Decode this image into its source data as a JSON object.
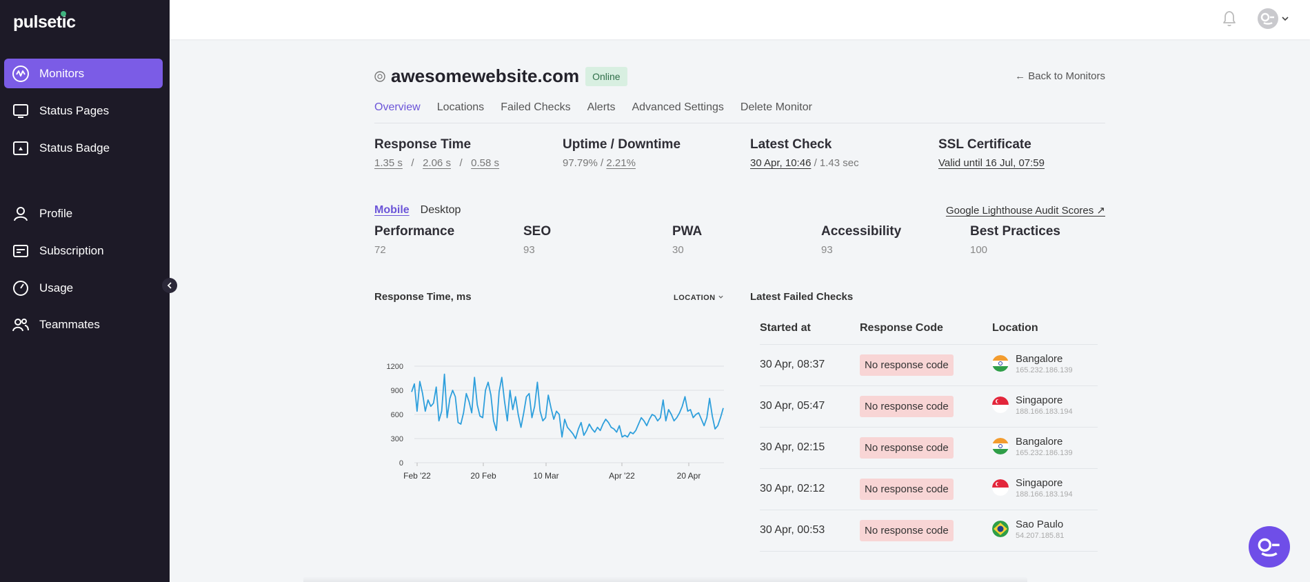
{
  "app": {
    "logo": "pulsetic"
  },
  "sidebar": {
    "items": [
      {
        "label": "Monitors",
        "icon": "monitors-icon",
        "active": true
      },
      {
        "label": "Status Pages",
        "icon": "status-pages-icon"
      },
      {
        "label": "Status Badge",
        "icon": "status-badge-icon"
      },
      {
        "label": "Profile",
        "icon": "profile-icon"
      },
      {
        "label": "Subscription",
        "icon": "subscription-icon"
      },
      {
        "label": "Usage",
        "icon": "usage-icon"
      },
      {
        "label": "Teammates",
        "icon": "teammates-icon"
      }
    ]
  },
  "monitor": {
    "title": "awesomewebsite.com",
    "status": "Online",
    "back_label": "← Back to Monitors"
  },
  "tabs": [
    "Overview",
    "Locations",
    "Failed Checks",
    "Alerts",
    "Advanced Settings",
    "Delete Monitor"
  ],
  "stats": {
    "response_time": {
      "title": "Response Time",
      "v1": "1.35 s",
      "v2": "2.06 s",
      "v3": "0.58 s",
      "sep": "/"
    },
    "uptime": {
      "title": "Uptime / Downtime",
      "up": "97.79%",
      "sep": " / ",
      "down": "2.21%"
    },
    "latest_check": {
      "title": "Latest Check",
      "time": "30 Apr, 10:46",
      "duration": " / 1.43 sec"
    },
    "ssl": {
      "title": "SSL Certificate",
      "value": "Valid until 16 Jul, 07:59"
    }
  },
  "lighthouse": {
    "mobile_label": "Mobile",
    "desktop_label": "Desktop",
    "link_label": "Google Lighthouse Audit Scores ↗",
    "scores": [
      {
        "title": "Performance",
        "value": "72"
      },
      {
        "title": "SEO",
        "value": "93"
      },
      {
        "title": "PWA",
        "value": "30"
      },
      {
        "title": "Accessibility",
        "value": "93"
      },
      {
        "title": "Best Practices",
        "value": "100"
      }
    ]
  },
  "chart_section": {
    "title": "Response Time, ms",
    "location_label": "LOCATION"
  },
  "chart_data": {
    "type": "line",
    "title": "Response Time, ms",
    "xlabel": "",
    "ylabel": "",
    "ylim": [
      0,
      1200
    ],
    "yticks": [
      "0",
      "300",
      "600",
      "900",
      "1200"
    ],
    "xticks": [
      "Feb '22",
      "20 Feb",
      "10 Mar",
      "Apr '22",
      "20 Apr"
    ],
    "grid": true,
    "color": "#2e9fdc",
    "series": [
      {
        "values": [
          880,
          980,
          640,
          1010,
          860,
          640,
          780,
          700,
          740,
          940,
          520,
          640,
          1100,
          560,
          800,
          900,
          820,
          500,
          480,
          620,
          860,
          760,
          620,
          1060,
          720,
          580,
          560,
          900,
          1000,
          840,
          520,
          400,
          880,
          1060,
          760,
          520,
          900,
          660,
          820,
          600,
          440,
          620,
          820,
          860,
          560,
          700,
          1000,
          640,
          520,
          560,
          840,
          680,
          540,
          640,
          600,
          320,
          540,
          440,
          400,
          360,
          300,
          420,
          500,
          340,
          400,
          480,
          420,
          380,
          440,
          400,
          480,
          540,
          500,
          440,
          420,
          380,
          460,
          320,
          340,
          320,
          380,
          360,
          400,
          480,
          560,
          520,
          460,
          540,
          600,
          580,
          520,
          560,
          780,
          520,
          660,
          600,
          520,
          560,
          620,
          700,
          820,
          640,
          660,
          560,
          600,
          620,
          540,
          460,
          560,
          800,
          580,
          420,
          460,
          560,
          680
        ]
      }
    ]
  },
  "failed_checks": {
    "title": "Latest Failed Checks",
    "columns": [
      "Started at",
      "Response Code",
      "Location"
    ],
    "rows": [
      {
        "started": "30 Apr, 08:37",
        "code": "No response code",
        "location": "Bangalore",
        "ip": "165.232.186.139",
        "flag": "india"
      },
      {
        "started": "30 Apr, 05:47",
        "code": "No response code",
        "location": "Singapore",
        "ip": "188.166.183.194",
        "flag": "singapore"
      },
      {
        "started": "30 Apr, 02:15",
        "code": "No response code",
        "location": "Bangalore",
        "ip": "165.232.186.139",
        "flag": "india"
      },
      {
        "started": "30 Apr, 02:12",
        "code": "No response code",
        "location": "Singapore",
        "ip": "188.166.183.194",
        "flag": "singapore"
      },
      {
        "started": "30 Apr, 00:53",
        "code": "No response code",
        "location": "Sao Paulo",
        "ip": "54.207.185.81",
        "flag": "brazil"
      }
    ]
  },
  "colors": {
    "sidebar_bg": "#1d1a27",
    "accent": "#7b5ce6",
    "online_bg": "#d8efe1",
    "error_bg": "#f8d5d5"
  }
}
